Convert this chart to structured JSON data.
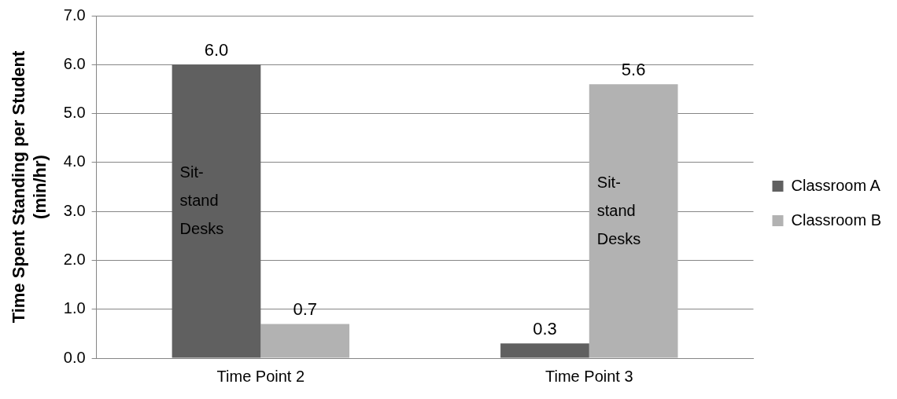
{
  "chart_data": {
    "type": "bar",
    "ylabel": "Time Spent Standing per Student\n(min/hr)",
    "categories": [
      "Time Point 2",
      "Time Point 3"
    ],
    "series": [
      {
        "name": "Classroom A",
        "color": "#606060",
        "values": [
          6.0,
          0.3
        ],
        "value_labels": [
          "6.0",
          "0.3"
        ]
      },
      {
        "name": "Classroom B",
        "color": "#b2b2b2",
        "values": [
          0.7,
          5.6
        ],
        "value_labels": [
          "0.7",
          "5.6"
        ]
      }
    ],
    "ylim": [
      0,
      7
    ],
    "yticks": [
      {
        "value": 0,
        "label": "0.0"
      },
      {
        "value": 1,
        "label": "1.0"
      },
      {
        "value": 2,
        "label": "2.0"
      },
      {
        "value": 3,
        "label": "3.0"
      },
      {
        "value": 4,
        "label": "4.0"
      },
      {
        "value": 5,
        "label": "5.0"
      },
      {
        "value": 6,
        "label": "6.0"
      },
      {
        "value": 7,
        "label": "7.0"
      }
    ],
    "grid": "y",
    "legend": "right",
    "annotations": [
      {
        "text": "Sit-\nstand\nDesks",
        "x": "Time Point 2",
        "y": 3.2
      },
      {
        "text": "Sit-\nstand\nDesks",
        "x": "Time Point 3",
        "y": 3.0
      }
    ]
  }
}
